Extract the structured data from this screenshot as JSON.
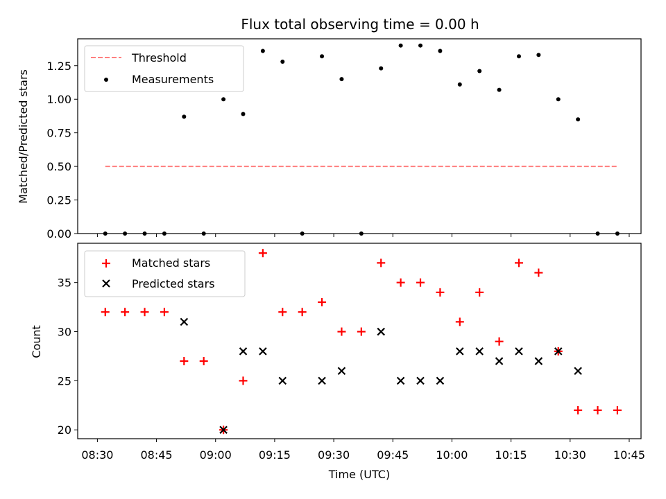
{
  "figure": {
    "title": "Flux total observing time = 0.00 h"
  },
  "chart_data": [
    {
      "type": "scatter",
      "panel": "top",
      "title": "Flux total observing time = 0.00 h",
      "xlabel": "",
      "ylabel": "Matched/Predicted stars",
      "xlim": [
        "08:25",
        "10:48"
      ],
      "ylim": [
        0,
        1.45
      ],
      "yticks": [
        "0.00",
        "0.25",
        "0.50",
        "0.75",
        "1.00",
        "1.25"
      ],
      "legend_position": "upper-left",
      "threshold": {
        "name": "Threshold",
        "value": 0.5,
        "x_start": "08:32",
        "x_end": "10:42",
        "color": "#ff7f7f",
        "style": "dashed"
      },
      "series": [
        {
          "name": "Measurements",
          "color": "#000000",
          "marker": "dot",
          "x": [
            "08:32",
            "08:37",
            "08:42",
            "08:47",
            "08:52",
            "08:57",
            "09:02",
            "09:07",
            "09:12",
            "09:17",
            "09:22",
            "09:27",
            "09:32",
            "09:37",
            "09:42",
            "09:47",
            "09:52",
            "09:57",
            "10:02",
            "10:07",
            "10:12",
            "10:17",
            "10:22",
            "10:27",
            "10:32",
            "10:37",
            "10:42"
          ],
          "y": [
            0,
            0,
            0,
            0,
            0.87,
            0,
            1.0,
            0.89,
            1.36,
            1.28,
            0,
            1.32,
            1.15,
            0,
            1.23,
            1.4,
            1.4,
            1.36,
            1.11,
            1.21,
            1.07,
            1.32,
            1.33,
            1.0,
            0.85,
            0,
            0
          ]
        }
      ]
    },
    {
      "type": "scatter",
      "panel": "bottom",
      "xlabel": "Time (UTC)",
      "ylabel": "Count",
      "xlim": [
        "08:25",
        "10:48"
      ],
      "ylim": [
        19.1,
        39.0
      ],
      "xticks": [
        "08:30",
        "08:45",
        "09:00",
        "09:15",
        "09:30",
        "09:45",
        "10:00",
        "10:15",
        "10:30",
        "10:45"
      ],
      "yticks": [
        "20",
        "25",
        "30",
        "35"
      ],
      "legend_position": "upper-left",
      "series": [
        {
          "name": "Matched stars",
          "color": "#ff0000",
          "marker": "plus",
          "x": [
            "08:32",
            "08:37",
            "08:42",
            "08:47",
            "08:52",
            "08:57",
            "09:02",
            "09:07",
            "09:12",
            "09:17",
            "09:22",
            "09:27",
            "09:32",
            "09:37",
            "09:42",
            "09:47",
            "09:52",
            "09:57",
            "10:02",
            "10:07",
            "10:12",
            "10:17",
            "10:22",
            "10:27",
            "10:32",
            "10:37",
            "10:42"
          ],
          "y": [
            32,
            32,
            32,
            32,
            27,
            27,
            20,
            25,
            38,
            32,
            32,
            33,
            30,
            30,
            37,
            35,
            35,
            34,
            31,
            34,
            29,
            37,
            36,
            28,
            22,
            22,
            22
          ]
        },
        {
          "name": "Predicted stars",
          "color": "#000000",
          "marker": "x",
          "x": [
            "08:52",
            "09:02",
            "09:07",
            "09:12",
            "09:17",
            "09:27",
            "09:32",
            "09:42",
            "09:47",
            "09:52",
            "09:57",
            "10:02",
            "10:07",
            "10:12",
            "10:17",
            "10:22",
            "10:27",
            "10:32"
          ],
          "y": [
            31,
            20,
            28,
            28,
            25,
            25,
            26,
            30,
            25,
            25,
            25,
            28,
            28,
            27,
            28,
            27,
            28,
            26
          ]
        }
      ]
    }
  ]
}
